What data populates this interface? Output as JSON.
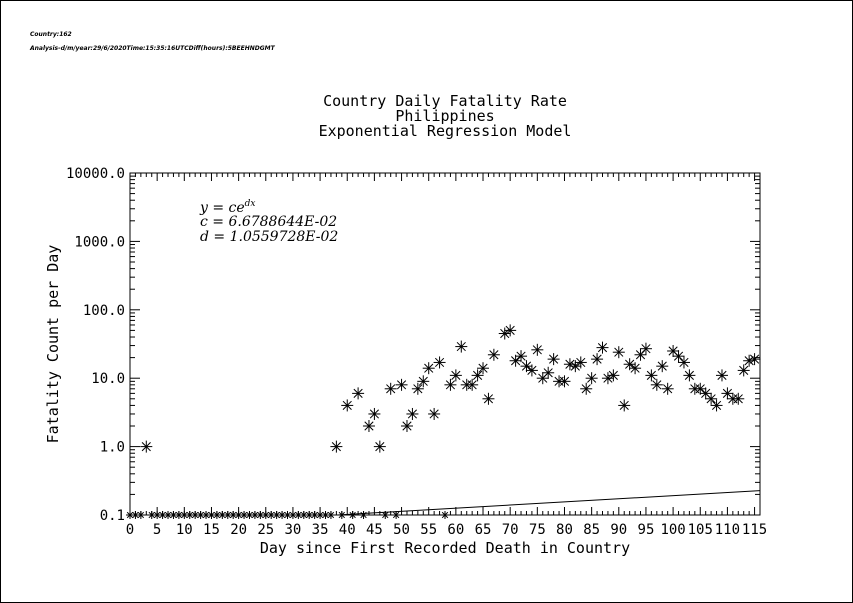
{
  "header": {
    "country_line": "Country:162",
    "analysis_line": "Analysis-d/m/year:29/6/2020Time:15:35:16UTCDiff(hours):5BEEHNDGMT"
  },
  "chart_data": {
    "type": "scatter",
    "title": [
      "Country Daily Fatality Rate",
      "Philippines",
      "Exponential Regression Model"
    ],
    "xlabel": "Day since First Recorded Death in Country",
    "ylabel": "Fatality Count per Day",
    "xlim": [
      0,
      116
    ],
    "ylim": [
      0.1,
      10000
    ],
    "yscale": "log",
    "xticks": [
      0,
      5,
      10,
      15,
      20,
      25,
      30,
      35,
      40,
      45,
      50,
      55,
      60,
      65,
      70,
      75,
      80,
      85,
      90,
      95,
      100,
      105,
      110,
      115
    ],
    "yticks": [
      {
        "value": 0.1,
        "label": "0.1"
      },
      {
        "value": 1,
        "label": "1.0"
      },
      {
        "value": 10,
        "label": "10.0"
      },
      {
        "value": 100,
        "label": "100.0"
      },
      {
        "value": 1000,
        "label": "1000.0"
      },
      {
        "value": 10000,
        "label": "10000.0"
      }
    ],
    "annotation": {
      "equation": "y = ce",
      "exponent": "dx",
      "c_line": "c = 6.6788644E-02",
      "d_line": "d = 1.0559728E-02"
    },
    "regression": {
      "c": 0.066788644,
      "d": 0.010559728,
      "x_start": 0,
      "x_end": 116
    },
    "points": [
      [
        3,
        1
      ],
      [
        38,
        1
      ],
      [
        40,
        4
      ],
      [
        42,
        6
      ],
      [
        44,
        2
      ],
      [
        45,
        3
      ],
      [
        46,
        1
      ],
      [
        48,
        7
      ],
      [
        50,
        8
      ],
      [
        51,
        2
      ],
      [
        52,
        3
      ],
      [
        53,
        7
      ],
      [
        54,
        9
      ],
      [
        55,
        14
      ],
      [
        56,
        3
      ],
      [
        57,
        17
      ],
      [
        59,
        8
      ],
      [
        60,
        11
      ],
      [
        61,
        29
      ],
      [
        62,
        8
      ],
      [
        63,
        8
      ],
      [
        64,
        11
      ],
      [
        65,
        14
      ],
      [
        66,
        5
      ],
      [
        67,
        22
      ],
      [
        69,
        45
      ],
      [
        70,
        50
      ],
      [
        71,
        18
      ],
      [
        72,
        21
      ],
      [
        73,
        15
      ],
      [
        74,
        13
      ],
      [
        75,
        26
      ],
      [
        76,
        10
      ],
      [
        77,
        12
      ],
      [
        78,
        19
      ],
      [
        79,
        9
      ],
      [
        80,
        9
      ],
      [
        81,
        16
      ],
      [
        82,
        15
      ],
      [
        83,
        17
      ],
      [
        84,
        7
      ],
      [
        85,
        10
      ],
      [
        86,
        19
      ],
      [
        87,
        28
      ],
      [
        88,
        10
      ],
      [
        89,
        11
      ],
      [
        90,
        24
      ],
      [
        91,
        4
      ],
      [
        92,
        16
      ],
      [
        93,
        14
      ],
      [
        94,
        22
      ],
      [
        95,
        27
      ],
      [
        96,
        11
      ],
      [
        97,
        8
      ],
      [
        98,
        15
      ],
      [
        99,
        7
      ],
      [
        100,
        25
      ],
      [
        101,
        21
      ],
      [
        102,
        17
      ],
      [
        103,
        11
      ],
      [
        104,
        7
      ],
      [
        105,
        7
      ],
      [
        106,
        6
      ],
      [
        107,
        5
      ],
      [
        108,
        4
      ],
      [
        109,
        11
      ],
      [
        110,
        6
      ],
      [
        111,
        5
      ],
      [
        112,
        5
      ],
      [
        113,
        13
      ],
      [
        114,
        18
      ],
      [
        115,
        19
      ]
    ],
    "zero_days": [
      0,
      1,
      2,
      4,
      5,
      6,
      7,
      8,
      9,
      10,
      11,
      12,
      13,
      14,
      15,
      16,
      17,
      18,
      19,
      20,
      21,
      22,
      23,
      24,
      25,
      26,
      27,
      28,
      29,
      30,
      31,
      32,
      33,
      34,
      35,
      36,
      37,
      39,
      41,
      43,
      47,
      49,
      58
    ]
  }
}
